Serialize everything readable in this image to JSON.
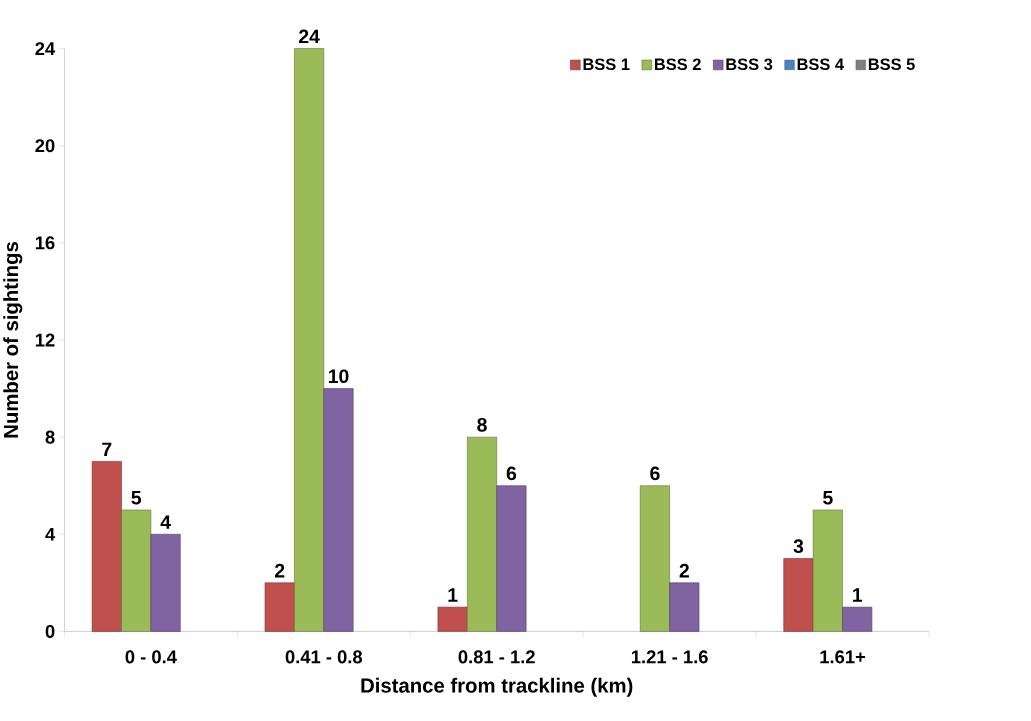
{
  "chart_data": {
    "type": "bar",
    "xlabel": "Distance from trackline (km)",
    "ylabel": "Number of sightings",
    "categories": [
      "0 - 0.4",
      "0.41 - 0.8",
      "0.81 - 1.2",
      "1.21 - 1.6",
      "1.61+"
    ],
    "series": [
      {
        "name": "BSS 1",
        "color": "#c0504d",
        "values": [
          7,
          2,
          1,
          null,
          3
        ]
      },
      {
        "name": "BSS 2",
        "color": "#9bbb59",
        "values": [
          5,
          24,
          8,
          6,
          5
        ]
      },
      {
        "name": "BSS 3",
        "color": "#8064a2",
        "values": [
          4,
          10,
          6,
          2,
          1
        ]
      },
      {
        "name": "BSS 4",
        "color": "#4f81bd",
        "values": [
          null,
          null,
          null,
          null,
          null
        ]
      },
      {
        "name": "BSS 5",
        "color": "#7f7f7f",
        "values": [
          null,
          null,
          null,
          null,
          null
        ]
      }
    ],
    "ylim": [
      0,
      24
    ],
    "yticks": [
      0,
      4,
      8,
      12,
      16,
      20,
      24
    ],
    "data_labels": true,
    "legend": "top right"
  }
}
